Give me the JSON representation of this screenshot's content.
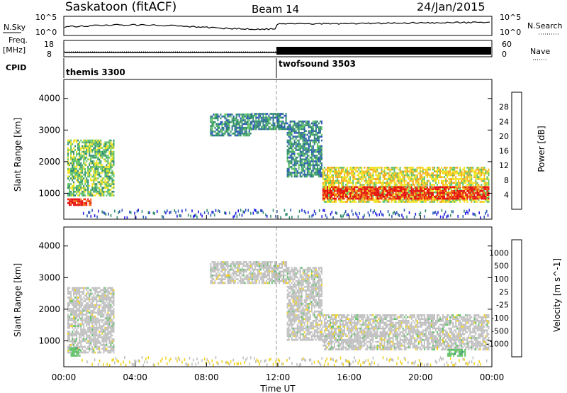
{
  "header": {
    "station": "Saskatoon (fitACF)",
    "beam": "Beam 14",
    "date": "24/Jan/2015"
  },
  "noise_panel": {
    "left_label": "N.Sky",
    "right_label": "N.Search",
    "left_ticks": [
      "10^5",
      "10^0"
    ],
    "right_ticks": [
      "10^5",
      "10^0"
    ]
  },
  "freq_panel": {
    "left_label_line1": "Freq.",
    "left_label_line2": "[MHz]",
    "right_label": "Nave",
    "left_ticks": [
      "18",
      "8"
    ],
    "right_ticks": [
      "60",
      "0"
    ]
  },
  "cpid": {
    "label": "CPID",
    "programs": [
      {
        "name": "themis 3300",
        "start_hour": 0
      },
      {
        "name": "twofsound 3503",
        "start_hour": 12
      }
    ]
  },
  "x_axis": {
    "label": "Time UT",
    "ticks": [
      "00:00",
      "04:00",
      "08:00",
      "12:00",
      "16:00",
      "20:00",
      "00:00"
    ],
    "range_hours": [
      0,
      24
    ]
  },
  "chart_data": [
    {
      "type": "heatmap",
      "quantity": "Power",
      "ylabel": "Slant Range [km]",
      "yticks": [
        "4000",
        "3000",
        "2000",
        "1000"
      ],
      "ylim": [
        180,
        4600
      ],
      "colorbar": {
        "label": "Power [dB]",
        "ticks": [
          "28",
          "24",
          "20",
          "16",
          "12",
          "8",
          "4"
        ],
        "range": [
          0,
          30
        ],
        "colors": [
          "#1f1ae0",
          "#2c58b8",
          "#2f8a6e",
          "#5fc266",
          "#f2e21f",
          "#f5a51e",
          "#f26a12",
          "#e60f0f"
        ]
      },
      "regions": [
        {
          "t0": 0.2,
          "t1": 1.5,
          "r0": 600,
          "r1": 800,
          "level": 7
        },
        {
          "t0": 0.2,
          "t1": 2.8,
          "r0": 900,
          "r1": 2700,
          "level": 3
        },
        {
          "t0": 8.2,
          "t1": 10.5,
          "r0": 2800,
          "r1": 3500,
          "level": 2
        },
        {
          "t0": 10.5,
          "t1": 12.5,
          "r0": 3000,
          "r1": 3500,
          "level": 2
        },
        {
          "t0": 12.5,
          "t1": 14.5,
          "r0": 1500,
          "r1": 3300,
          "level": 2
        },
        {
          "t0": 14.5,
          "t1": 23.8,
          "r0": 700,
          "r1": 1800,
          "level": 4
        },
        {
          "t0": 14.5,
          "t1": 23.8,
          "r0": 800,
          "r1": 1200,
          "level": 7
        }
      ]
    },
    {
      "type": "heatmap",
      "quantity": "Velocity",
      "ylabel": "Slant Range [km]",
      "yticks": [
        "4000",
        "3000",
        "2000",
        "1000"
      ],
      "ylim": [
        180,
        4600
      ],
      "colorbar": {
        "label": "Velocity [m s^-1]",
        "ticks": [
          "1000",
          "500",
          "100",
          "25",
          "-25",
          "-100",
          "-500",
          "-1000"
        ],
        "range": [
          -1200,
          1200
        ],
        "colors": [
          "#2038c8",
          "#2a5fa6",
          "#2f8a6e",
          "#5fc266",
          "#c0c0c0",
          "#f2d21f",
          "#f5a51e",
          "#f26a12",
          "#e60f0f"
        ]
      },
      "regions": [
        {
          "t0": 0.2,
          "t1": 2.8,
          "r0": 600,
          "r1": 2700,
          "level": 4
        },
        {
          "t0": 8.2,
          "t1": 12.5,
          "r0": 2800,
          "r1": 3500,
          "level": 4
        },
        {
          "t0": 12.5,
          "t1": 14.5,
          "r0": 1000,
          "r1": 3300,
          "level": 4
        },
        {
          "t0": 14.5,
          "t1": 23.8,
          "r0": 700,
          "r1": 1800,
          "level": 4
        },
        {
          "t0": 21.5,
          "t1": 22.5,
          "r0": 500,
          "r1": 700,
          "level": 3
        },
        {
          "t0": 0.3,
          "t1": 0.9,
          "r0": 500,
          "r1": 750,
          "level": 3
        }
      ]
    }
  ]
}
